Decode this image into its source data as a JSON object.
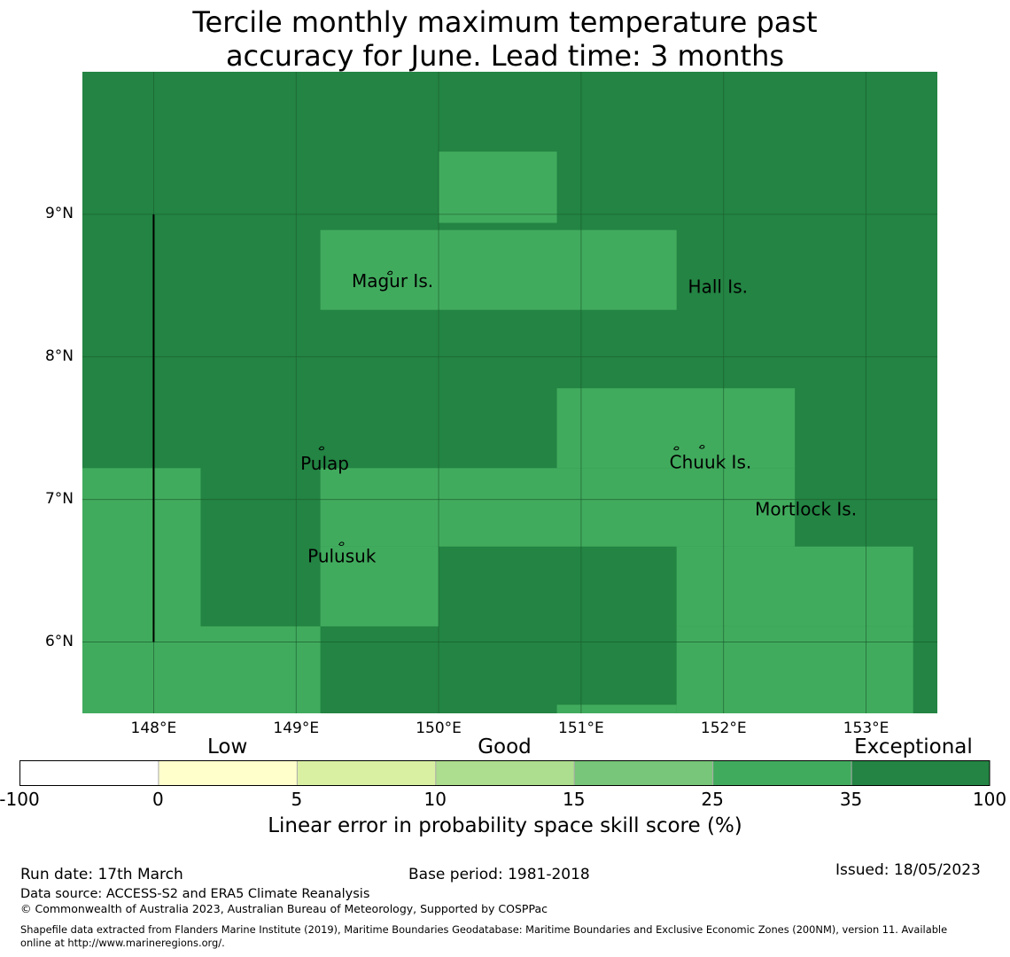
{
  "title": {
    "line1": "Tercile monthly maximum temperature past",
    "line2": "accuracy for June. Lead time: 3 months"
  },
  "map": {
    "lon_range": [
      147.5,
      153.5
    ],
    "lat_range": [
      5.5,
      10.0
    ],
    "lat_ticks": [
      {
        "value": 9,
        "label": "9°N"
      },
      {
        "value": 8,
        "label": "8°N"
      },
      {
        "value": 7,
        "label": "7°N"
      },
      {
        "value": 6,
        "label": "6°N"
      }
    ],
    "lon_ticks": [
      {
        "value": 148,
        "label": "148°E"
      },
      {
        "value": 149,
        "label": "149°E"
      },
      {
        "value": 150,
        "label": "150°E"
      },
      {
        "value": 151,
        "label": "151°E"
      },
      {
        "value": 152,
        "label": "152°E"
      },
      {
        "value": 153,
        "label": "153°E"
      }
    ],
    "background_category": "exceptional",
    "good_cells": [
      {
        "lon": [
          150.0,
          150.83
        ],
        "lat": [
          8.94,
          9.44
        ]
      },
      {
        "lon": [
          149.17,
          151.67
        ],
        "lat": [
          8.33,
          8.89
        ]
      },
      {
        "lon": [
          150.83,
          152.5
        ],
        "lat": [
          7.22,
          7.78
        ]
      },
      {
        "lon": [
          147.5,
          148.33
        ],
        "lat": [
          5.5,
          7.22
        ]
      },
      {
        "lon": [
          149.17,
          152.5
        ],
        "lat": [
          6.67,
          7.22
        ]
      },
      {
        "lon": [
          149.17,
          150.0
        ],
        "lat": [
          6.11,
          6.67
        ]
      },
      {
        "lon": [
          151.67,
          153.33
        ],
        "lat": [
          6.11,
          6.67
        ]
      },
      {
        "lon": [
          147.5,
          149.17
        ],
        "lat": [
          5.5,
          6.11
        ]
      },
      {
        "lon": [
          151.67,
          153.33
        ],
        "lat": [
          5.5,
          6.11
        ]
      },
      {
        "lon": [
          150.83,
          151.67
        ],
        "lat": [
          5.5,
          5.56
        ]
      }
    ],
    "boundary_line": {
      "lon": 148.0,
      "lat": [
        6.0,
        9.0
      ]
    },
    "places": [
      {
        "name": "Magur Is.",
        "lon": 149.39,
        "lat": 8.49
      },
      {
        "name": "Hall Is.",
        "lon": 151.75,
        "lat": 8.45
      },
      {
        "name": "Pulap",
        "lon": 149.03,
        "lat": 7.21
      },
      {
        "name": "Chuuk Is.",
        "lon": 151.62,
        "lat": 7.22
      },
      {
        "name": "Mortlock Is.",
        "lon": 152.22,
        "lat": 6.89
      },
      {
        "name": "Pulusuk",
        "lon": 149.08,
        "lat": 6.56
      }
    ],
    "islands": [
      {
        "lon": 149.66,
        "lat": 8.59
      },
      {
        "lon": 149.18,
        "lat": 7.36
      },
      {
        "lon": 149.32,
        "lat": 6.69
      },
      {
        "lon": 151.67,
        "lat": 7.36
      },
      {
        "lon": 151.85,
        "lat": 7.37
      }
    ]
  },
  "legend": {
    "categories": [
      {
        "label": "Low",
        "center_value": 1.5
      },
      {
        "label": "Good",
        "center_value": 3.5
      },
      {
        "label": "Exceptional",
        "center_value": 6.45
      }
    ],
    "bins": [
      {
        "from": "-100",
        "to": "0",
        "color": "#ffffff"
      },
      {
        "from": "0",
        "to": "5",
        "color": "#ffffcc"
      },
      {
        "from": "5",
        "to": "10",
        "color": "#d9f0a3"
      },
      {
        "from": "10",
        "to": "15",
        "color": "#addd8e"
      },
      {
        "from": "15",
        "to": "25",
        "color": "#78c679"
      },
      {
        "from": "25",
        "to": "35",
        "color": "#41ab5d"
      },
      {
        "from": "35",
        "to": "100",
        "color": "#238443"
      }
    ],
    "tick_labels": [
      "-100",
      "0",
      "5",
      "10",
      "15",
      "25",
      "35",
      "100"
    ],
    "title": "Linear error in probability space skill score (%)"
  },
  "colors": {
    "exceptional": "#238443",
    "good": "#41ab5d",
    "grid": "#1a5c2e"
  },
  "footer": {
    "run_date": "Run date: 17th March",
    "base_period": "Base period: 1981-2018",
    "issued": "Issued: 18/05/2023",
    "data_source": "Data source: ACCESS-S2 and ERA5 Climate Reanalysis",
    "copyright": "© Commonwealth of Australia 2023, Australian Bureau of Meteorology, Supported by COSPPac",
    "shapefile_line1": "Shapefile data extracted from Flanders Marine Institute (2019), Maritime Boundaries Geodatabase: Maritime Boundaries and Exclusive Economic Zones (200NM), version 11. Available",
    "shapefile_line2": "online at http://www.marineregions.org/."
  }
}
